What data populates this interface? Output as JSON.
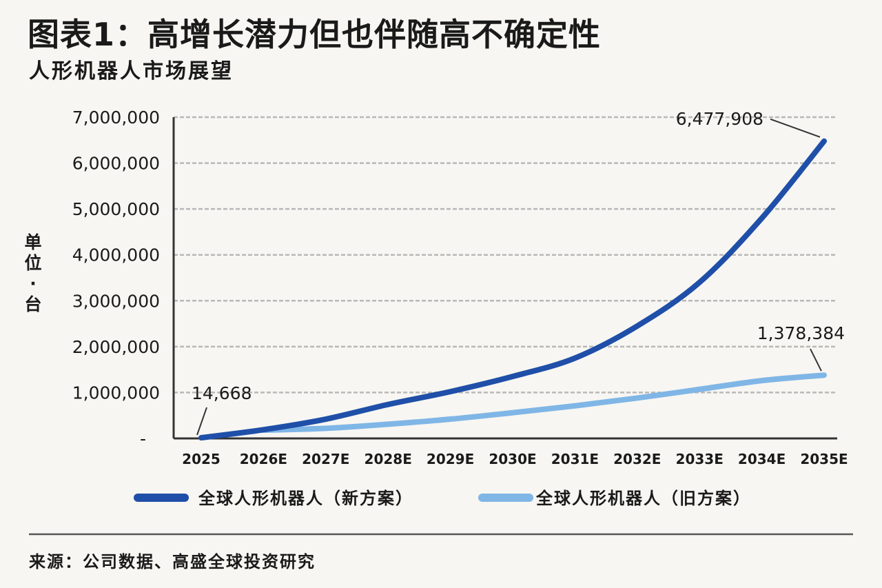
{
  "title": "图表1：高增长潜力但也伴随高不确定性",
  "subtitle": "人形机器人市场展望",
  "source": "来源：公司数据、高盛全球投资研究",
  "chart_data": {
    "type": "line",
    "ylabel": "单位：台",
    "categories": [
      "2025",
      "2026E",
      "2027E",
      "2028E",
      "2029E",
      "2030E",
      "2031E",
      "2032E",
      "2033E",
      "2034E",
      "2035E"
    ],
    "y_ticks": [
      {
        "value": 0,
        "label": "-"
      },
      {
        "value": 1000000,
        "label": "1,000,000"
      },
      {
        "value": 2000000,
        "label": "2,000,000"
      },
      {
        "value": 3000000,
        "label": "3,000,000"
      },
      {
        "value": 4000000,
        "label": "4,000,000"
      },
      {
        "value": 5000000,
        "label": "5,000,000"
      },
      {
        "value": 6000000,
        "label": "6,000,000"
      },
      {
        "value": 7000000,
        "label": "7,000,000"
      }
    ],
    "ylim": [
      0,
      7000000
    ],
    "grid": true,
    "legend_position": "bottom",
    "series": [
      {
        "name": "全球人形机器人（新方案）",
        "color": "#1f4fa8",
        "values": [
          14668,
          190000,
          420000,
          740000,
          1020000,
          1350000,
          1750000,
          2450000,
          3400000,
          4800000,
          6477908
        ]
      },
      {
        "name": "全球人形机器人（旧方案）",
        "color": "#7fb6e6",
        "values": [
          null,
          180000,
          220000,
          310000,
          420000,
          560000,
          710000,
          880000,
          1070000,
          1260000,
          1378384
        ]
      }
    ],
    "annotations": [
      {
        "series": 0,
        "index": 0,
        "text": "14,668"
      },
      {
        "series": 0,
        "index": 10,
        "text": "6,477,908"
      },
      {
        "series": 1,
        "index": 10,
        "text": "1,378,384"
      }
    ]
  }
}
